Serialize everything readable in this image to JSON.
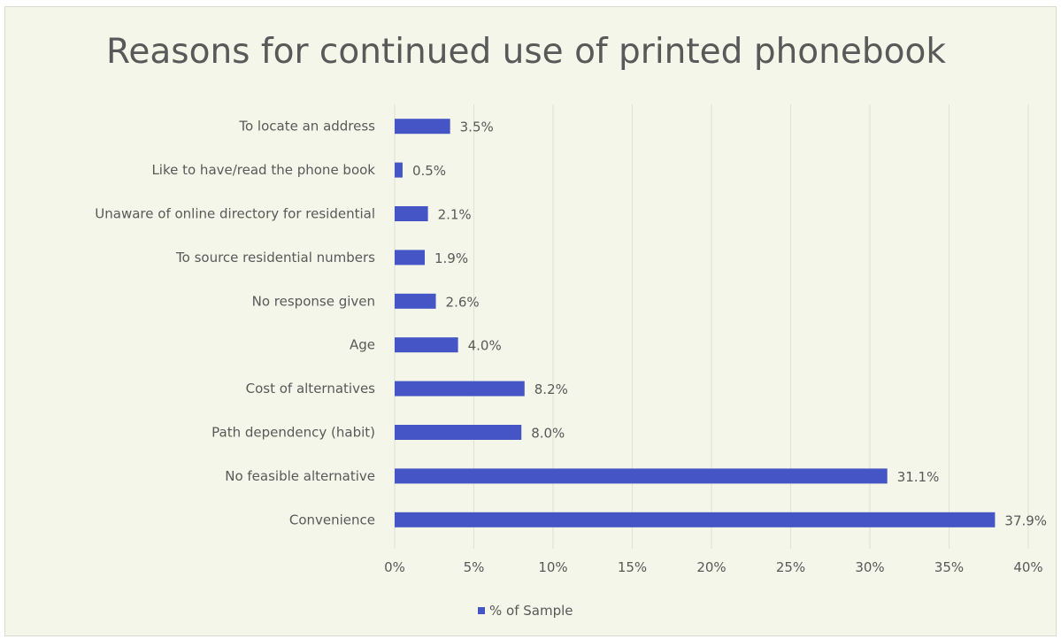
{
  "chart_data": {
    "type": "bar",
    "orientation": "horizontal",
    "title": "Reasons for continued use of printed phonebook",
    "categories": [
      "To locate an address",
      "Like to have/read the phone book",
      "Unaware of online directory for residential",
      "To source residential numbers",
      "No response given",
      "Age",
      "Cost of alternatives",
      "Path dependency (habit)",
      "No feasible alternative",
      "Convenience"
    ],
    "series": [
      {
        "name": "% of Sample",
        "values": [
          3.5,
          0.5,
          2.1,
          1.9,
          2.6,
          4.0,
          8.2,
          8.0,
          31.1,
          37.9
        ],
        "data_labels": [
          "3.5%",
          "0.5%",
          "2.1%",
          "1.9%",
          "2.6%",
          "4.0%",
          "8.2%",
          "8.0%",
          "31.1%",
          "37.9%"
        ],
        "color": "#4655c6"
      }
    ],
    "xlim": [
      0,
      40
    ],
    "xticks": [
      0,
      5,
      10,
      15,
      20,
      25,
      30,
      35,
      40
    ],
    "xtick_labels": [
      "0%",
      "5%",
      "10%",
      "15%",
      "20%",
      "25%",
      "30%",
      "35%",
      "40%"
    ],
    "grid": "vertical",
    "legend_position": "bottom"
  },
  "colors": {
    "background": "#f3f6e8",
    "bar": "#4655c6",
    "grid": "#dfe3d2",
    "text": "#595959"
  }
}
